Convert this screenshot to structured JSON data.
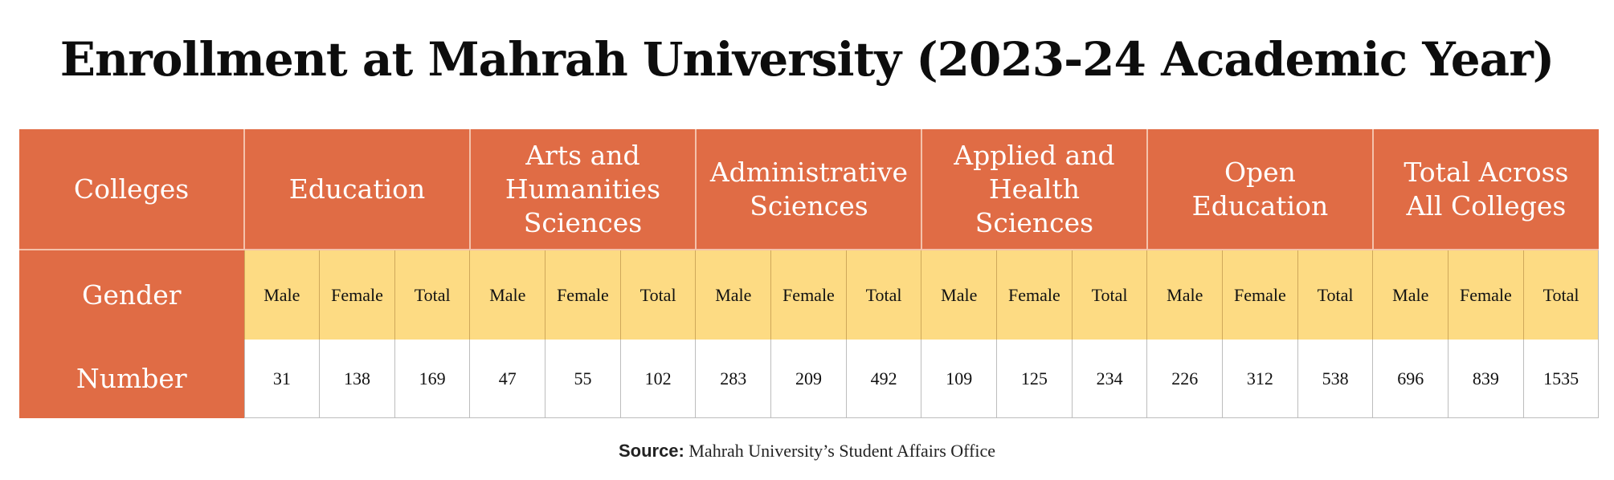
{
  "title": "Enrollment at Mahrah University (2023-24 Academic Year)",
  "source_label": "Source:",
  "source_text": "Mahrah University’s Student Affairs Office",
  "colors": {
    "header_bg": "#e06c45",
    "gender_row_bg": "#fddb83",
    "number_row_bg": "#ffffff"
  },
  "chart_data": {
    "type": "table",
    "row_labels": {
      "colleges": "Colleges",
      "gender": "Gender",
      "number": "Number"
    },
    "colleges": [
      {
        "name": "Education",
        "values": {
          "male": "31",
          "female": "138",
          "total": "169"
        }
      },
      {
        "name": "Arts and Humanities Sciences",
        "values": {
          "male": "47",
          "female": "55",
          "total": "102"
        }
      },
      {
        "name": "Administrative Sciences",
        "values": {
          "male": "283",
          "female": "209",
          "total": "492"
        }
      },
      {
        "name": "Applied and Health Sciences",
        "values": {
          "male": "109",
          "female": "125",
          "total": "234"
        }
      },
      {
        "name": "Open Education",
        "values": {
          "male": "226",
          "female": "312",
          "total": "538"
        }
      },
      {
        "name": "Total Across All Colleges",
        "values": {
          "male": "696",
          "female": "839",
          "total": "1535"
        }
      }
    ],
    "gender_labels": {
      "male": "Male",
      "female": "Female",
      "total": "Total"
    }
  }
}
